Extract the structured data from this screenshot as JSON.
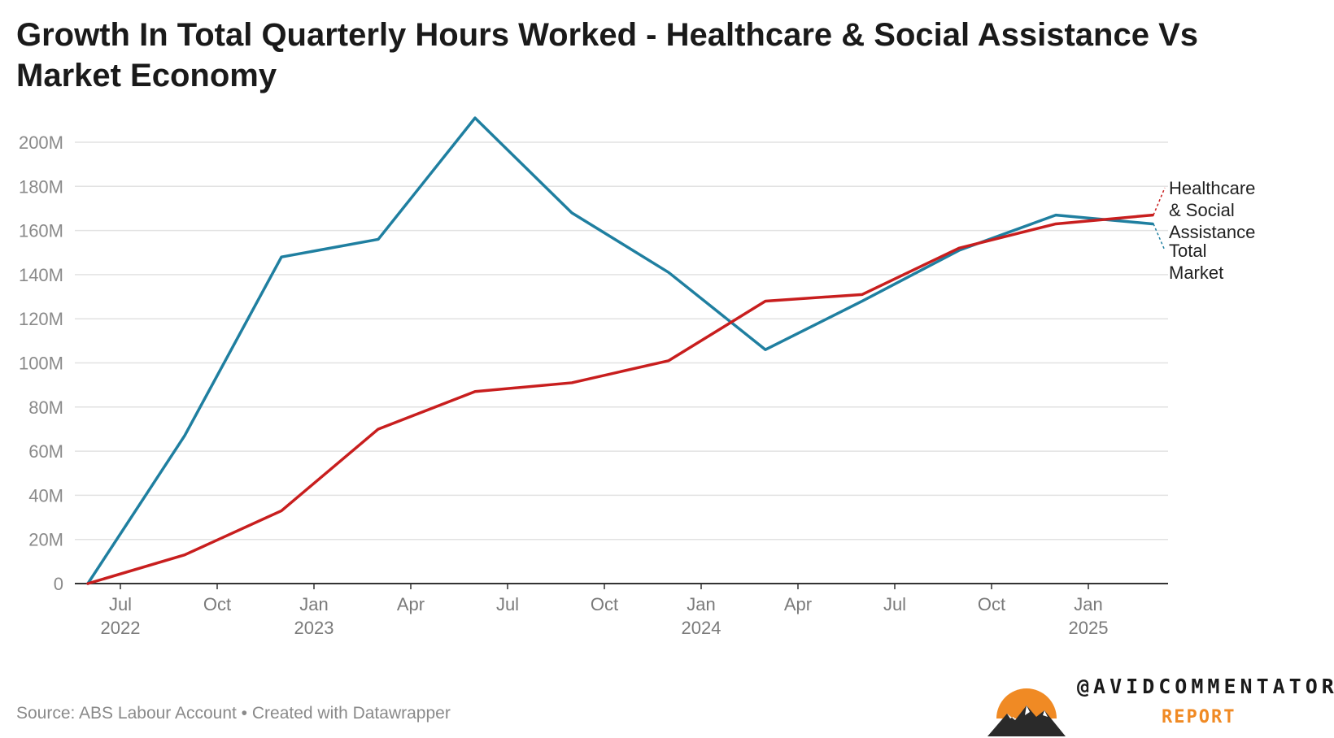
{
  "title": "Growth In Total Quarterly Hours Worked - Healthcare & Social Assistance Vs Market Economy",
  "source": "Source: ABS Labour Account • Created with Datawrapper",
  "logo": {
    "handle": "@AVIDCOMMENTATOR",
    "tagline": "REPORT"
  },
  "colors": {
    "total_market": "#1f7fa0",
    "healthcare": "#c81e1e",
    "grid": "#e2e2e2",
    "axis": "#333333"
  },
  "chart_data": {
    "type": "line",
    "title": "Growth In Total Quarterly Hours Worked - Healthcare & Social Assistance Vs Market Economy",
    "x": [
      "Jun 2022",
      "Sep 2022",
      "Dec 2022",
      "Mar 2023",
      "Jun 2023",
      "Sep 2023",
      "Dec 2023",
      "Mar 2024",
      "Jun 2024",
      "Sep 2024",
      "Dec 2024",
      "Mar 2025"
    ],
    "x_tick_labels": [
      {
        "month": "Jul",
        "year": "2022"
      },
      {
        "month": "Oct",
        "year": ""
      },
      {
        "month": "Jan",
        "year": "2023"
      },
      {
        "month": "Apr",
        "year": ""
      },
      {
        "month": "Jul",
        "year": ""
      },
      {
        "month": "Oct",
        "year": ""
      },
      {
        "month": "Jan",
        "year": "2024"
      },
      {
        "month": "Apr",
        "year": ""
      },
      {
        "month": "Jul",
        "year": ""
      },
      {
        "month": "Oct",
        "year": ""
      },
      {
        "month": "Jan",
        "year": "2025"
      }
    ],
    "y_ticks": [
      "0",
      "20M",
      "40M",
      "60M",
      "80M",
      "100M",
      "120M",
      "140M",
      "160M",
      "180M",
      "200M"
    ],
    "ylim": [
      0,
      200000000
    ],
    "series": [
      {
        "name": "Total Market",
        "label_lines": [
          "Total",
          "Market"
        ],
        "color": "#1f7fa0",
        "values": [
          0,
          67000000,
          148000000,
          156000000,
          211000000,
          168000000,
          141000000,
          106000000,
          128000000,
          151000000,
          167000000,
          163000000
        ]
      },
      {
        "name": "Healthcare & Social Assistance",
        "label_lines": [
          "Healthcare",
          "& Social",
          "Assistance"
        ],
        "color": "#c81e1e",
        "values": [
          0,
          13000000,
          33000000,
          70000000,
          87000000,
          91000000,
          101000000,
          128000000,
          131000000,
          152000000,
          163000000,
          167000000
        ]
      }
    ],
    "grid": true,
    "legend": "direct labels at right end"
  }
}
